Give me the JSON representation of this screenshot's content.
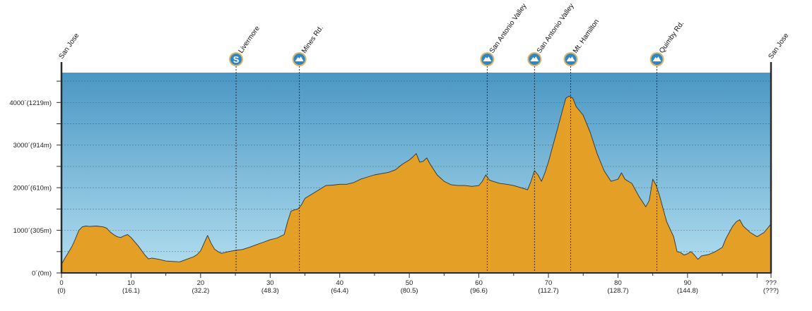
{
  "chart_data": {
    "type": "area",
    "colors": {
      "sky_top": "#4a97c4",
      "sky_bottom": "#b3dff0",
      "fill": "#e39f26",
      "line": "#333333",
      "badge": "#2f86c2",
      "badge_ring": "#d9b56b"
    },
    "grid": true,
    "xlim": [
      0,
      102
    ],
    "ylim": [
      0,
      4700
    ],
    "x_ticks": [
      {
        "x": 0,
        "label": "0",
        "sub": "(0)"
      },
      {
        "x": 10,
        "label": "10",
        "sub": "(16.1)"
      },
      {
        "x": 20,
        "label": "20",
        "sub": "(32.2)"
      },
      {
        "x": 30,
        "label": "30",
        "sub": "(48.3)"
      },
      {
        "x": 40,
        "label": "40",
        "sub": "(64.4)"
      },
      {
        "x": 50,
        "label": "50",
        "sub": "(80.5)"
      },
      {
        "x": 60,
        "label": "60",
        "sub": "(96.6)"
      },
      {
        "x": 70,
        "label": "70",
        "sub": "(112.7)"
      },
      {
        "x": 80,
        "label": "80",
        "sub": "(128.7)"
      },
      {
        "x": 90,
        "label": "90",
        "sub": "(144.8)"
      },
      {
        "x": 102,
        "label": "???",
        "sub": "(???)"
      }
    ],
    "y_ticks": [
      {
        "y": 0,
        "label": "0´(0m)"
      },
      {
        "y": 1000,
        "label": "1000´(305m)"
      },
      {
        "y": 2000,
        "label": "2000´(610m)"
      },
      {
        "y": 3000,
        "label": "3000´(914m)"
      },
      {
        "y": 4000,
        "label": "4000´(1219m)"
      }
    ],
    "endpoints": [
      {
        "x": 0,
        "label": "San Jose"
      },
      {
        "x": 102,
        "label": "San Jose"
      }
    ],
    "markers": [
      {
        "x": 25.1,
        "label": "Livermore",
        "icon": "S"
      },
      {
        "x": 34.2,
        "label": "Mines Rd.",
        "icon": "mountain"
      },
      {
        "x": 61.2,
        "label": "San Antonio Valley",
        "icon": "mountain"
      },
      {
        "x": 68.0,
        "label": "San Antonio Valley",
        "icon": "mountain"
      },
      {
        "x": 73.2,
        "label": "Mt. Hamilton",
        "icon": "mountain"
      },
      {
        "x": 85.6,
        "label": "Quimby Rd.",
        "icon": "mountain"
      }
    ],
    "elevation": {
      "x": [
        0,
        0.5,
        1,
        1.5,
        2,
        2.5,
        3,
        3.5,
        4,
        5,
        6,
        6.5,
        7,
        7.5,
        8,
        8.5,
        9,
        9.5,
        10,
        11,
        12,
        12.5,
        13,
        14,
        15,
        16,
        17,
        18,
        19,
        19.5,
        20,
        20.5,
        21,
        21.5,
        22,
        22.5,
        23,
        24,
        25,
        26,
        27,
        28,
        29,
        30,
        31,
        32,
        32.5,
        33,
        33.5,
        34,
        34.5,
        35,
        36,
        37,
        38,
        39,
        40,
        41,
        42,
        43,
        44,
        45,
        46,
        47,
        48,
        49,
        49.5,
        50,
        50.5,
        51,
        51.5,
        52,
        52.5,
        53,
        54,
        55,
        56,
        57,
        58,
        59,
        60,
        60.5,
        61,
        61.5,
        62,
        63,
        64,
        65,
        66,
        66.5,
        67,
        67.5,
        68,
        68.5,
        69,
        69.5,
        70,
        70.5,
        71,
        71.5,
        72,
        72.5,
        73,
        73.5,
        74,
        75,
        76,
        77,
        78,
        79,
        80,
        80.5,
        81,
        82,
        83,
        84,
        84.5,
        85,
        85.5,
        86,
        86.5,
        87,
        88,
        88.5,
        89,
        89.5,
        90,
        90.5,
        91,
        91.5,
        92,
        93,
        94,
        95,
        95.5,
        96,
        96.5,
        97,
        97.5,
        98,
        99,
        100,
        100.5,
        101,
        101.5,
        102
      ],
      "y": [
        200,
        350,
        480,
        620,
        800,
        1000,
        1080,
        1100,
        1090,
        1100,
        1080,
        1050,
        960,
        900,
        850,
        830,
        870,
        900,
        830,
        640,
        420,
        330,
        350,
        320,
        280,
        270,
        260,
        320,
        380,
        430,
        520,
        700,
        880,
        700,
        560,
        500,
        460,
        500,
        530,
        550,
        600,
        660,
        720,
        780,
        820,
        900,
        1200,
        1450,
        1480,
        1500,
        1600,
        1750,
        1850,
        1950,
        2050,
        2060,
        2080,
        2080,
        2120,
        2200,
        2250,
        2300,
        2330,
        2360,
        2420,
        2550,
        2600,
        2650,
        2720,
        2800,
        2600,
        2620,
        2700,
        2550,
        2300,
        2150,
        2070,
        2050,
        2050,
        2030,
        2050,
        2150,
        2300,
        2180,
        2150,
        2100,
        2080,
        2050,
        2000,
        1980,
        1950,
        2150,
        2400,
        2300,
        2150,
        2350,
        2600,
        2900,
        3200,
        3500,
        3800,
        4100,
        4150,
        4100,
        3900,
        3700,
        3300,
        2800,
        2400,
        2150,
        2200,
        2350,
        2200,
        2100,
        1800,
        1550,
        1700,
        2200,
        2050,
        1800,
        1500,
        1200,
        850,
        500,
        480,
        420,
        450,
        500,
        420,
        320,
        400,
        430,
        500,
        600,
        800,
        950,
        1100,
        1200,
        1250,
        1100,
        950,
        850,
        900,
        950,
        1050,
        1150
      ]
    }
  }
}
